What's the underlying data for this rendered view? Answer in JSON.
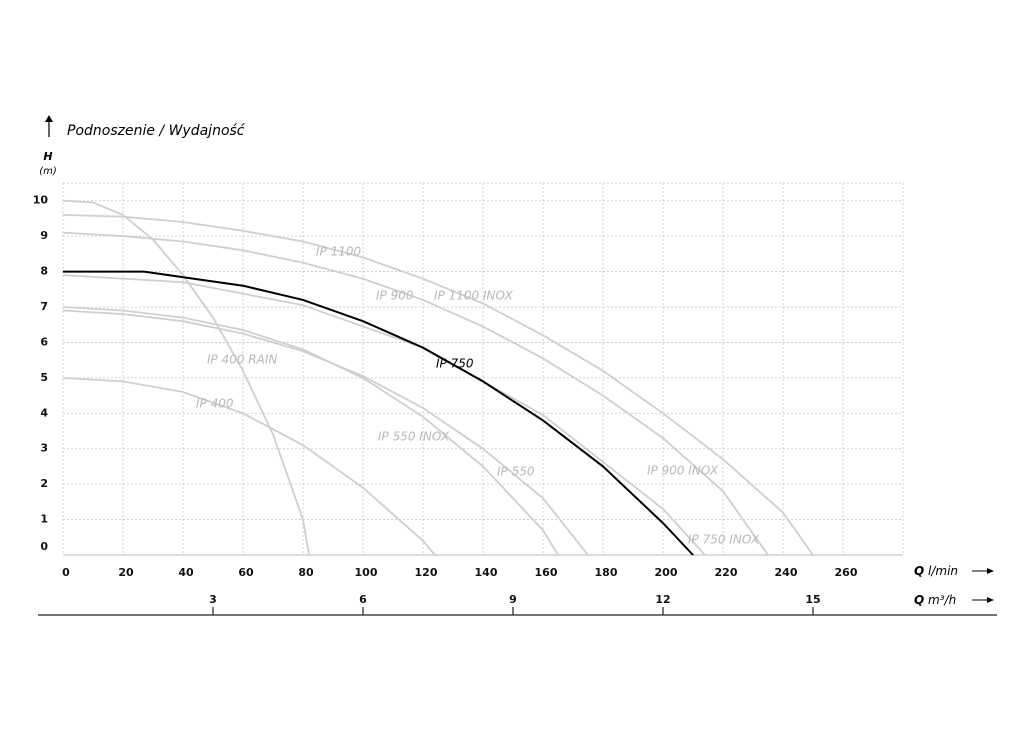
{
  "chart_data": {
    "type": "line",
    "title": "Podnoszenie / Wydajność",
    "y_label": "H",
    "y_unit": "(m)",
    "x_label": {
      "symbol": "Q",
      "unit": "l/min"
    },
    "x2_label": {
      "symbol": "Q",
      "unit": "m³/h"
    },
    "xlim": [
      0,
      280
    ],
    "ylim": [
      0,
      10.5
    ],
    "x2lim": [
      0,
      16.8
    ],
    "xticks": [
      0,
      20,
      40,
      60,
      80,
      100,
      120,
      140,
      160,
      180,
      200,
      220,
      240,
      260
    ],
    "yticks": [
      0,
      1,
      2,
      3,
      4,
      5,
      6,
      7,
      8,
      9,
      10
    ],
    "x2ticks": [
      3,
      6,
      9,
      12,
      15
    ],
    "grid": true,
    "series": [
      {
        "name": "IP 1100",
        "color": "#cfcfcf",
        "x": [
          0,
          20,
          40,
          60,
          80,
          100,
          120,
          140,
          160,
          180,
          200,
          220,
          240,
          250
        ],
        "values": [
          9.6,
          9.55,
          9.4,
          9.15,
          8.85,
          8.4,
          7.8,
          7.1,
          6.2,
          5.2,
          4.0,
          2.7,
          1.2,
          0
        ]
      },
      {
        "name": "IP 900",
        "color": "#cfcfcf",
        "x": [
          0,
          20,
          40,
          60,
          80,
          100,
          120,
          140,
          160,
          180,
          200,
          220,
          235
        ],
        "values": [
          9.1,
          9.0,
          8.85,
          8.6,
          8.25,
          7.8,
          7.2,
          6.45,
          5.55,
          4.5,
          3.3,
          1.8,
          0
        ]
      },
      {
        "name": "IP 750 INOX",
        "color": "#cfcfcf",
        "x": [
          0,
          40,
          80,
          120,
          160,
          200,
          214
        ],
        "values": [
          7.9,
          7.7,
          7.05,
          5.85,
          3.95,
          1.3,
          0
        ]
      },
      {
        "name": "IP 550 INOX",
        "color": "#cfcfcf",
        "x": [
          0,
          20,
          40,
          60,
          80,
          100,
          120,
          140,
          160,
          165
        ],
        "values": [
          7.0,
          6.9,
          6.7,
          6.35,
          5.8,
          5.0,
          3.9,
          2.5,
          0.7,
          0
        ]
      },
      {
        "name": "IP 550",
        "color": "#cfcfcf",
        "x": [
          0,
          20,
          40,
          60,
          80,
          100,
          120,
          140,
          160,
          175
        ],
        "values": [
          6.9,
          6.8,
          6.6,
          6.25,
          5.75,
          5.05,
          4.15,
          3.0,
          1.6,
          0
        ]
      },
      {
        "name": "IP 400",
        "color": "#cfcfcf",
        "x": [
          0,
          20,
          40,
          60,
          80,
          100,
          120,
          124
        ],
        "values": [
          5.0,
          4.9,
          4.6,
          4.0,
          3.1,
          1.9,
          0.4,
          0
        ]
      },
      {
        "name": "IP 400 RAIN",
        "color": "#cfcfcf",
        "x": [
          0,
          10,
          20,
          30,
          40,
          50,
          60,
          70,
          80,
          82
        ],
        "values": [
          10.0,
          9.95,
          9.6,
          8.9,
          7.9,
          6.7,
          5.2,
          3.4,
          1.0,
          0
        ]
      },
      {
        "name": "IP 750",
        "color": "#000000",
        "x": [
          0,
          27,
          60,
          80,
          100,
          120,
          140,
          160,
          180,
          200,
          210
        ],
        "values": [
          8.0,
          8.0,
          7.6,
          7.2,
          6.6,
          5.85,
          4.9,
          3.8,
          2.5,
          0.9,
          0
        ]
      }
    ],
    "annotations": [
      "IP 1100 INOX",
      "IP 900 INOX"
    ]
  }
}
